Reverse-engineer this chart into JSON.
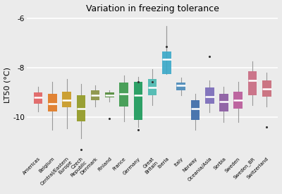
{
  "title": "Variation in freezing tolerance",
  "ylabel": "LT50 (°C)",
  "background_color": "#EBEBEB",
  "grid_color": "white",
  "categories": [
    "Americas",
    "Belgium",
    "Central/Eastern\nEurope",
    "Czech\nRepublic",
    "Denmark",
    "Finland",
    "France",
    "Germany",
    "Great\nBritain",
    "Iberia",
    "Italy",
    "Norway",
    "Oceania/Asia",
    "Serbia",
    "Sweden",
    "Sweden_BR",
    "Switzerland"
  ],
  "colors": [
    "#E06060",
    "#E07820",
    "#C89820",
    "#909820",
    "#889040",
    "#508838",
    "#38984A",
    "#189858",
    "#48B8B0",
    "#38A8C8",
    "#4888B8",
    "#3868A8",
    "#7868B8",
    "#8858A0",
    "#B85898",
    "#C86880",
    "#C86878"
  ],
  "boxes": [
    {
      "med": -9.2,
      "q1": -9.45,
      "q3": -9.0,
      "whislo": -9.75,
      "whishi": -8.75,
      "fliers": []
    },
    {
      "med": -9.45,
      "q1": -9.75,
      "q3": -9.05,
      "whislo": -10.5,
      "whishi": -8.55,
      "fliers": []
    },
    {
      "med": -9.3,
      "q1": -9.6,
      "q3": -8.95,
      "whislo": -10.45,
      "whishi": -8.45,
      "fliers": []
    },
    {
      "med": -9.65,
      "q1": -10.15,
      "q3": -9.1,
      "whislo": -10.85,
      "whishi": -8.65,
      "fliers": [
        -11.3
      ]
    },
    {
      "med": -9.1,
      "q1": -9.3,
      "q3": -8.9,
      "whislo": -9.55,
      "whishi": -8.7,
      "fliers": []
    },
    {
      "med": -9.1,
      "q1": -9.2,
      "q3": -9.0,
      "whislo": -9.35,
      "whishi": -8.9,
      "fliers": [
        -10.05
      ]
    },
    {
      "med": -9.05,
      "q1": -9.55,
      "q3": -8.6,
      "whislo": -10.15,
      "whishi": -8.3,
      "fliers": []
    },
    {
      "med": -9.1,
      "q1": -10.1,
      "q3": -8.55,
      "whislo": -10.4,
      "whishi": -8.35,
      "fliers": [
        -8.55,
        -10.5
      ]
    },
    {
      "med": -8.8,
      "q1": -9.1,
      "q3": -8.45,
      "whislo": -9.5,
      "whishi": -8.05,
      "fliers": [
        -8.55
      ]
    },
    {
      "med": -7.65,
      "q1": -8.25,
      "q3": -7.35,
      "whislo": -6.3,
      "whishi": -6.3,
      "fliers": [
        -7.15
      ]
    },
    {
      "med": -8.7,
      "q1": -8.9,
      "q3": -8.6,
      "whislo": -9.1,
      "whishi": -8.4,
      "fliers": []
    },
    {
      "med": -9.65,
      "q1": -10.1,
      "q3": -9.3,
      "whislo": -10.5,
      "whishi": -9.05,
      "fliers": []
    },
    {
      "med": -9.15,
      "q1": -9.45,
      "q3": -8.8,
      "whislo": -9.8,
      "whishi": -8.5,
      "fliers": [
        -7.55
      ]
    },
    {
      "med": -9.35,
      "q1": -9.75,
      "q3": -9.05,
      "whislo": -10.2,
      "whishi": -8.75,
      "fliers": []
    },
    {
      "med": -9.3,
      "q1": -9.65,
      "q3": -8.95,
      "whislo": -10.2,
      "whishi": -8.55,
      "fliers": []
    },
    {
      "med": -8.5,
      "q1": -9.1,
      "q3": -8.15,
      "whislo": -9.5,
      "whishi": -7.75,
      "fliers": []
    },
    {
      "med": -8.85,
      "q1": -9.15,
      "q3": -8.5,
      "whislo": -9.55,
      "whishi": -8.2,
      "fliers": [
        -10.4
      ]
    }
  ],
  "ylim": [
    -11.5,
    -5.9
  ],
  "yticks": [
    -10,
    -8,
    -6
  ],
  "ytick_labels": [
    "-10",
    "-8",
    "-6"
  ]
}
